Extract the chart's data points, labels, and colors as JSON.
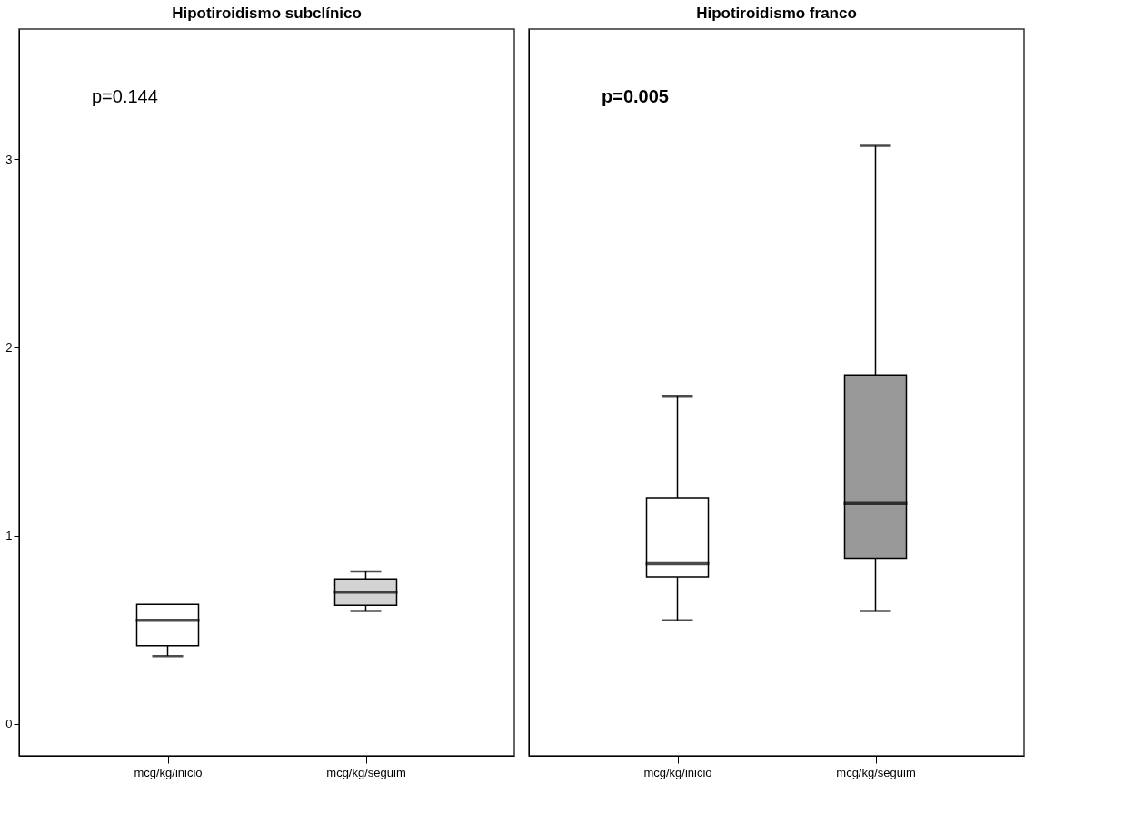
{
  "chart_data": [
    {
      "type": "box",
      "title": "Hipotiroidismo subclínico",
      "categories": [
        "mcg/kg/inicio",
        "mcg/kg/seguim"
      ],
      "colors": [
        "#ffffff",
        "#d3d3d3"
      ],
      "boxes": [
        {
          "low": 0.36,
          "q1": 0.415,
          "median": 0.55,
          "q3": 0.635,
          "high": 0.635
        },
        {
          "low": 0.6,
          "q1": 0.63,
          "median": 0.7,
          "q3": 0.77,
          "high": 0.81
        }
      ],
      "ylim": [
        -0.17,
        3.69
      ],
      "yticks": [
        0,
        1,
        2,
        3
      ],
      "grid": false,
      "annotations": [
        "p=0.144"
      ]
    },
    {
      "type": "box",
      "title": "Hipotiroidismo franco",
      "categories": [
        "mcg/kg/inicio",
        "mcg/kg/seguim"
      ],
      "colors": [
        "#ffffff",
        "#999999"
      ],
      "boxes": [
        {
          "low": 0.55,
          "q1": 0.78,
          "median": 0.85,
          "q3": 1.2,
          "high": 1.74
        },
        {
          "low": 0.6,
          "q1": 0.88,
          "median": 1.17,
          "q3": 1.85,
          "high": 3.07
        }
      ],
      "ylim": [
        -0.17,
        3.69
      ],
      "yticks": [
        0,
        1,
        2,
        3
      ],
      "grid": false,
      "tick_labels": "x",
      "annotations": [
        "p=0.005"
      ]
    }
  ]
}
